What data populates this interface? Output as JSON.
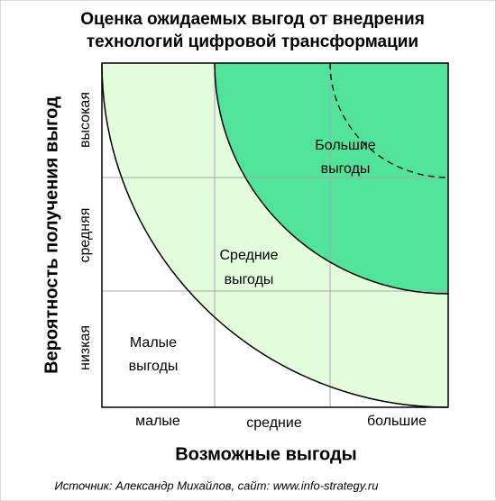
{
  "title": {
    "line1": "Оценка ожидаемых выгод от внедрения",
    "line2": "технологий цифровой трансформации"
  },
  "x_axis": {
    "title": "Возможные выгоды",
    "labels": [
      "малые",
      "средние",
      "большие"
    ]
  },
  "y_axis": {
    "title": "Вероятность получения выгод",
    "labels": [
      "низкая",
      "средняя",
      "высокая"
    ]
  },
  "regions": [
    {
      "line1": "Малые",
      "line2": "выгоды"
    },
    {
      "line1": "Средние",
      "line2": "выгоды"
    },
    {
      "line1": "Большие",
      "line2": "выгоды"
    }
  ],
  "source": "Источник: Александр Михайлов, сайт: www.info-strategy.ru"
}
